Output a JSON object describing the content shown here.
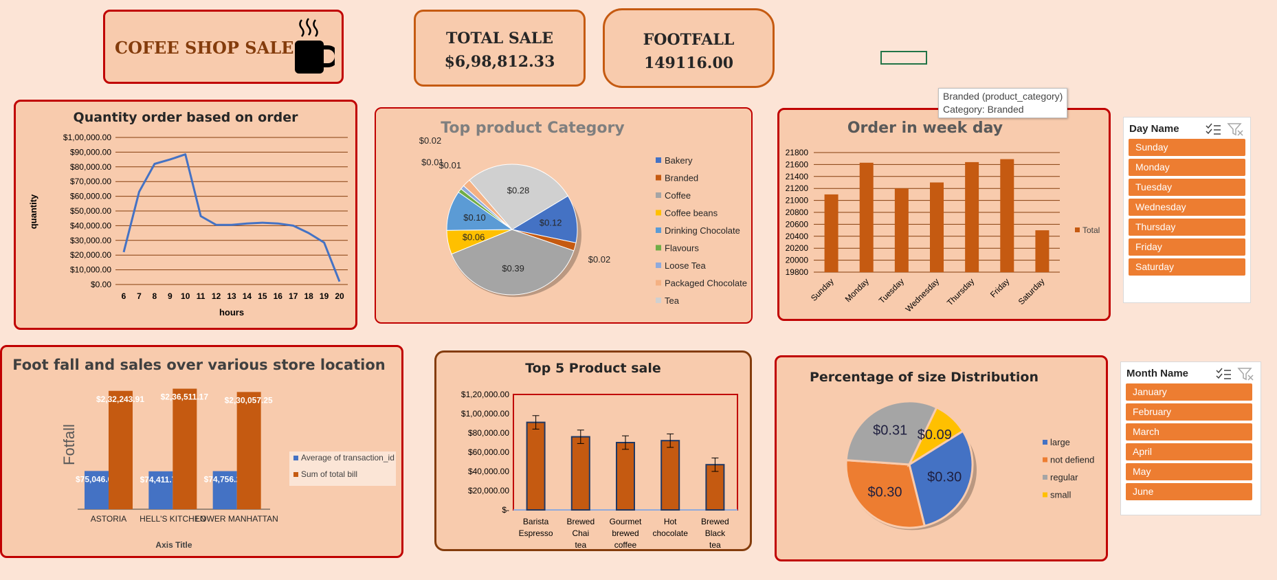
{
  "header": {
    "title": "COFEE SHOP SALES"
  },
  "kpis": {
    "total_sale_label": "TOTAL SALE",
    "total_sale_value": "$6,98,812.33",
    "footfall_label": "FOOTFALL",
    "footfall_value": "149116.00"
  },
  "tooltip": {
    "line1": "Branded (product_category)",
    "line2": "Category: Branded"
  },
  "slicers": {
    "day": {
      "title": "Day Name",
      "items": [
        "Sunday",
        "Monday",
        "Tuesday",
        "Wednesday",
        "Thursday",
        "Friday",
        "Saturday"
      ]
    },
    "month": {
      "title": "Month Name",
      "items": [
        "January",
        "February",
        "March",
        "April",
        "May",
        "June"
      ]
    }
  },
  "colors": {
    "accent": "#c55a11",
    "card_bg": "#f8cbad",
    "page_bg": "#fce4d6",
    "border_red": "#c00000",
    "line_blue": "#4472c4",
    "slicer_orange": "#ed7d31"
  },
  "chart_data": [
    {
      "id": "quantity",
      "type": "line",
      "title": "Quantity order based on order",
      "xlabel": "hours",
      "ylabel": "quantity",
      "x": [
        6,
        7,
        8,
        9,
        10,
        11,
        12,
        13,
        14,
        15,
        16,
        17,
        18,
        19,
        20
      ],
      "values": [
        22000,
        63000,
        82000,
        85000,
        88500,
        46500,
        40500,
        40500,
        41500,
        42000,
        41500,
        40000,
        35000,
        28500,
        2000
      ],
      "ylim": [
        0,
        100000
      ],
      "ytick_labels": [
        "$0.00",
        "$10,000.00",
        "$20,000.00",
        "$30,000.00",
        "$40,000.00",
        "$50,000.00",
        "$60,000.00",
        "$70,000.00",
        "$80,000.00",
        "$90,000.00",
        "$1,00,000.00"
      ],
      "grid": true
    },
    {
      "id": "category",
      "type": "pie",
      "title": "Top product Category",
      "categories": [
        "Bakery",
        "Branded",
        "Coffee",
        "Coffee beans",
        "Drinking Chocolate",
        "Flavours",
        "Loose Tea",
        "Packaged Chocolate",
        "Tea"
      ],
      "values": [
        0.12,
        0.02,
        0.39,
        0.06,
        0.1,
        0.01,
        0.01,
        0.02,
        0.28
      ],
      "labels": [
        "$0.12",
        "$0.02",
        "$0.39",
        "$0.06",
        "$0.10",
        "$0.01",
        "$0.01",
        "$0.02",
        "$0.28"
      ],
      "colors": [
        "#4472c4",
        "#c55a11",
        "#a5a5a5",
        "#ffc000",
        "#5b9bd5",
        "#70ad47",
        "#8faadc",
        "#f4b183",
        "#d0d0d0"
      ],
      "legend": "right"
    },
    {
      "id": "weekday",
      "type": "bar",
      "title": "Order in week day",
      "categories": [
        "Sunday",
        "Monday",
        "Tuesday",
        "Wednesday",
        "Thursday",
        "Friday",
        "Saturday"
      ],
      "values": [
        21100,
        21630,
        21200,
        21300,
        21640,
        21690,
        20500
      ],
      "ylim": [
        19800,
        21800
      ],
      "ytick_labels": [
        "19800",
        "20000",
        "20200",
        "20400",
        "20600",
        "20800",
        "21000",
        "21200",
        "21400",
        "21600",
        "21800"
      ],
      "series_name": "Total",
      "legend": "right",
      "grid": true
    },
    {
      "id": "location",
      "type": "bar",
      "title": "Foot fall and sales over various store location",
      "xlabel": "Axis Title",
      "ylabel": "Fotfall",
      "categories": [
        "ASTORIA",
        "HELL'S KITCHEN",
        "LOWER MANHATTAN"
      ],
      "series": [
        {
          "name": "Average of transaction_id",
          "values": [
            75046.02,
            74411.73,
            74756.29
          ],
          "labels": [
            "$75,046.02",
            "$74,411.73",
            "$74,756.29"
          ],
          "color": "#4472c4"
        },
        {
          "name": "Sum of total bill",
          "values": [
            232243.91,
            236511.17,
            230057.25
          ],
          "labels": [
            "$2,32,243.91",
            "$2,36,511.17",
            "$2,30,057.25"
          ],
          "color": "#c55a11"
        }
      ],
      "legend": "right"
    },
    {
      "id": "top5",
      "type": "bar",
      "title": "Top 5 Product sale",
      "categories": [
        "Barista Espresso",
        "Brewed Chai tea",
        "Gourmet brewed coffee",
        "Hot chocolate",
        "Brewed Black tea"
      ],
      "values": [
        91000,
        76000,
        70000,
        72000,
        47000
      ],
      "errors": [
        7000,
        7000,
        7000,
        7000,
        7000
      ],
      "ylim": [
        0,
        120000
      ],
      "ytick_labels": [
        "$-",
        "$20,000.00",
        "$40,000.00",
        "$60,000.00",
        "$80,000.00",
        "$1,00,000.00",
        "$1,20,000.00"
      ]
    },
    {
      "id": "size",
      "type": "pie",
      "title": "Percentage of size Distribution",
      "categories": [
        "large",
        "not defiend",
        "regular",
        "small"
      ],
      "values": [
        0.3,
        0.3,
        0.31,
        0.09
      ],
      "labels": [
        "$0.30",
        "$0.30",
        "$0.31",
        "$0.09"
      ],
      "colors": [
        "#4472c4",
        "#ed7d31",
        "#a5a5a5",
        "#ffc000"
      ],
      "legend": "right"
    }
  ]
}
